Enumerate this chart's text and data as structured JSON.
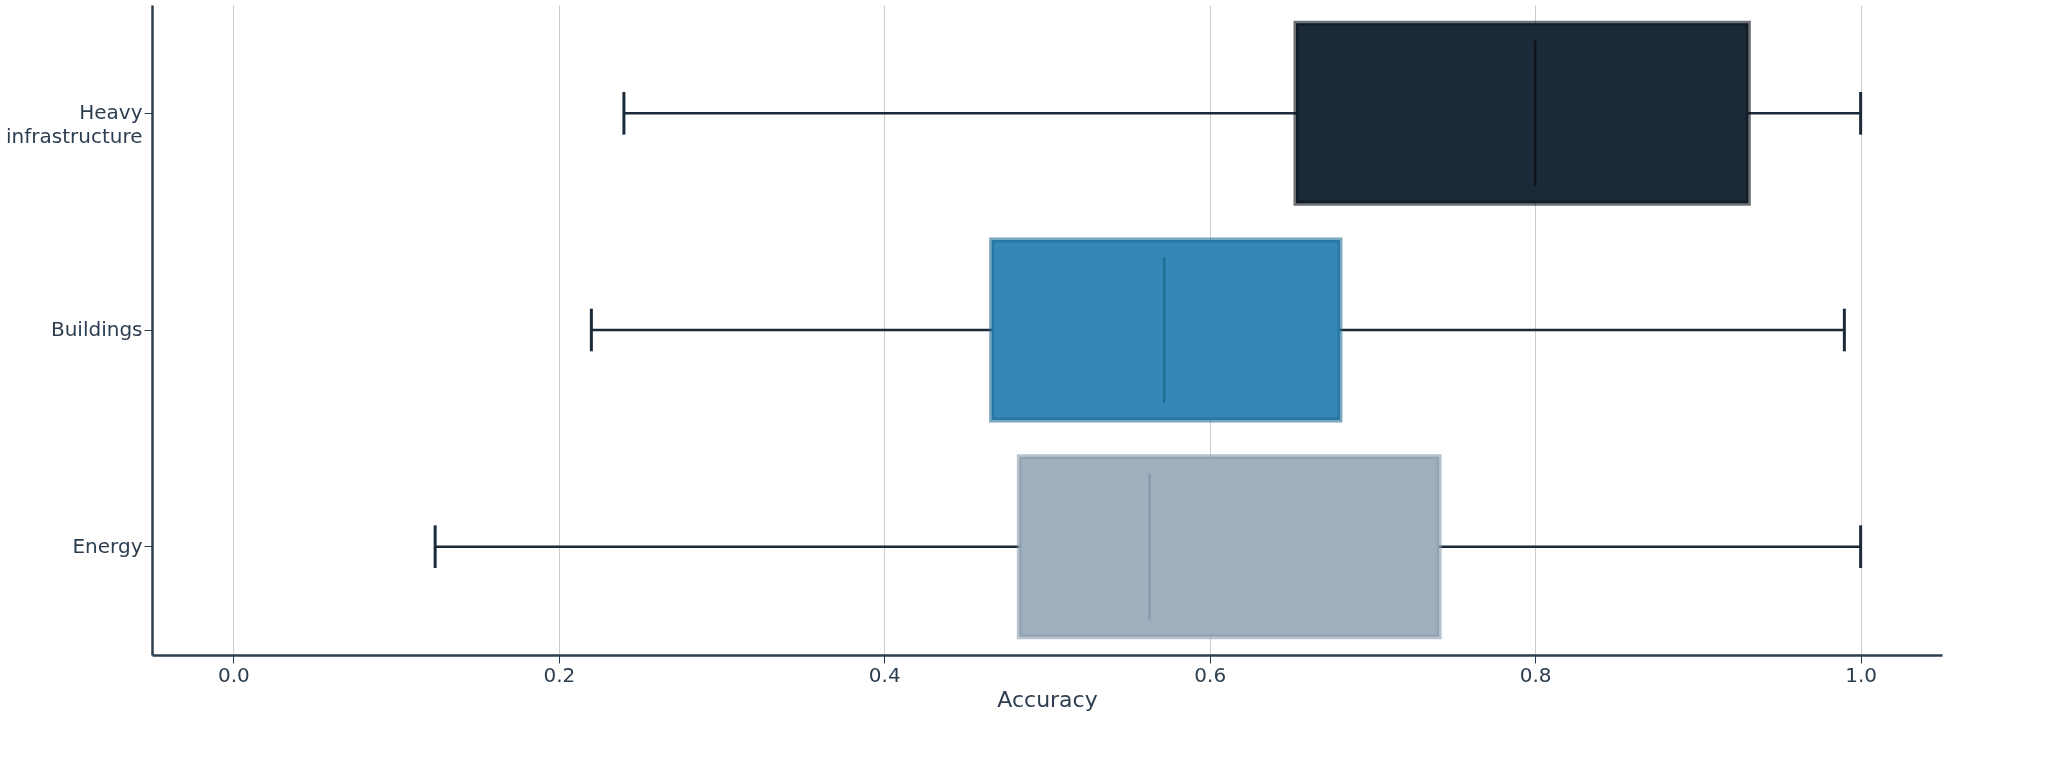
{
  "chart_data": {
    "type": "box",
    "orientation": "horizontal",
    "xlabel": "Accuracy",
    "categories": [
      "Heavy infrastructure",
      "Buildings",
      "Energy"
    ],
    "boxes": [
      {
        "low": 0.24,
        "q1": 0.653,
        "median": 0.8,
        "q3": 0.931,
        "high": 1.0
      },
      {
        "low": 0.22,
        "q1": 0.466,
        "median": 0.572,
        "q3": 0.68,
        "high": 0.99
      },
      {
        "low": 0.124,
        "q1": 0.483,
        "median": 0.563,
        "q3": 0.741,
        "high": 1.0
      }
    ],
    "colors": [
      "#1b2a38",
      "#3587b8",
      "#9eafbd"
    ],
    "xlim": [
      -0.05,
      1.05
    ],
    "xticks": [
      {
        "value": 0,
        "label": "0.0"
      },
      0.2,
      0.4,
      0.6,
      0.8,
      {
        "value": 1,
        "label": "1.0"
      }
    ],
    "grid": "x",
    "legend": false
  }
}
